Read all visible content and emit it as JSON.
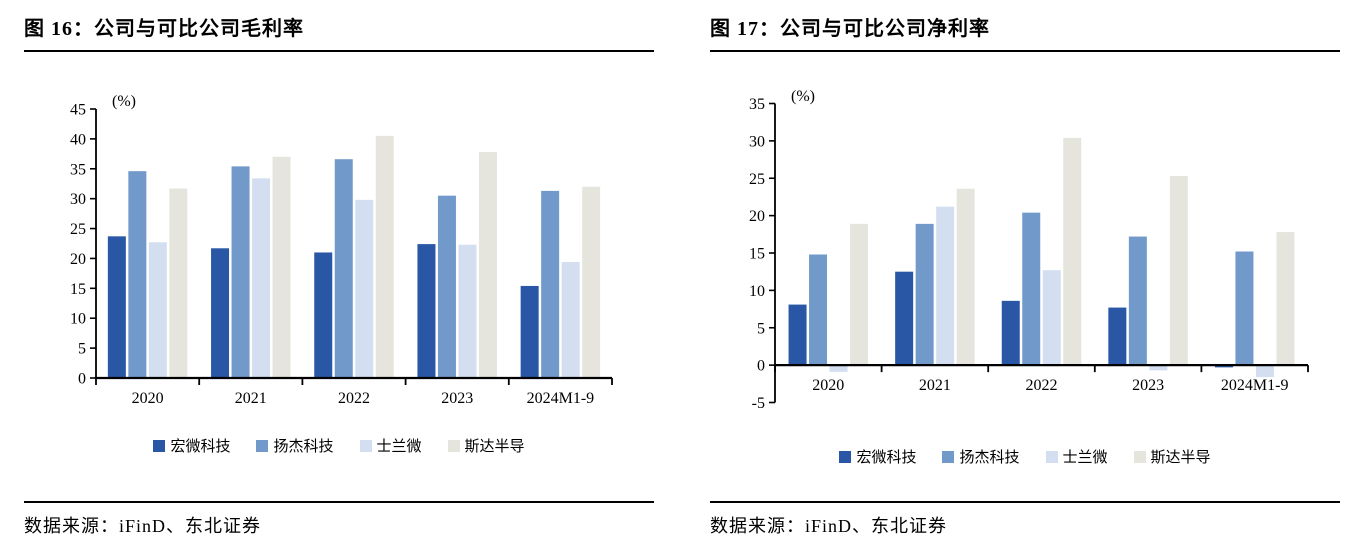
{
  "figures": [
    {
      "title": "图 16：公司与可比公司毛利率",
      "source": "数据来源：iFinD、东北证券"
    },
    {
      "title": "图 17：公司与可比公司净利率",
      "source": "数据来源：iFinD、东北证券"
    }
  ],
  "chart_data": [
    {
      "type": "bar",
      "title": "公司与可比公司毛利率",
      "unit_label": "(%)",
      "categories": [
        "2020",
        "2021",
        "2022",
        "2023",
        "2024M1-9"
      ],
      "series": [
        {
          "name": "宏微科技",
          "color": "#2A57A5",
          "values": [
            23.7,
            21.7,
            21.0,
            22.4,
            15.4
          ]
        },
        {
          "name": "扬杰科技",
          "color": "#7199C9",
          "values": [
            34.6,
            35.4,
            36.6,
            30.5,
            31.3
          ]
        },
        {
          "name": "士兰微",
          "color": "#D3DFF0",
          "values": [
            22.7,
            33.4,
            29.8,
            22.3,
            19.4
          ]
        },
        {
          "name": "斯达半导",
          "color": "#E6E5DD",
          "values": [
            31.7,
            37.0,
            40.5,
            37.8,
            32.0
          ]
        }
      ],
      "ylim": [
        0,
        45
      ],
      "ytick_step": 5,
      "grid": false,
      "legend_position": "bottom"
    },
    {
      "type": "bar",
      "title": "公司与可比公司净利率",
      "unit_label": "(%)",
      "categories": [
        "2020",
        "2021",
        "2022",
        "2023",
        "2024M1-9"
      ],
      "series": [
        {
          "name": "宏微科技",
          "color": "#2A57A5",
          "values": [
            8.1,
            12.5,
            8.6,
            7.7,
            -0.3
          ]
        },
        {
          "name": "扬杰科技",
          "color": "#7199C9",
          "values": [
            14.8,
            18.9,
            20.4,
            17.2,
            15.2
          ]
        },
        {
          "name": "士兰微",
          "color": "#D3DFF0",
          "values": [
            -0.9,
            21.2,
            12.7,
            -0.7,
            -1.6
          ]
        },
        {
          "name": "斯达半导",
          "color": "#E6E5DD",
          "values": [
            18.9,
            23.6,
            30.4,
            25.3,
            17.8
          ]
        }
      ],
      "ylim": [
        -5,
        35
      ],
      "ytick_step": 5,
      "grid": false,
      "legend_position": "bottom"
    }
  ]
}
